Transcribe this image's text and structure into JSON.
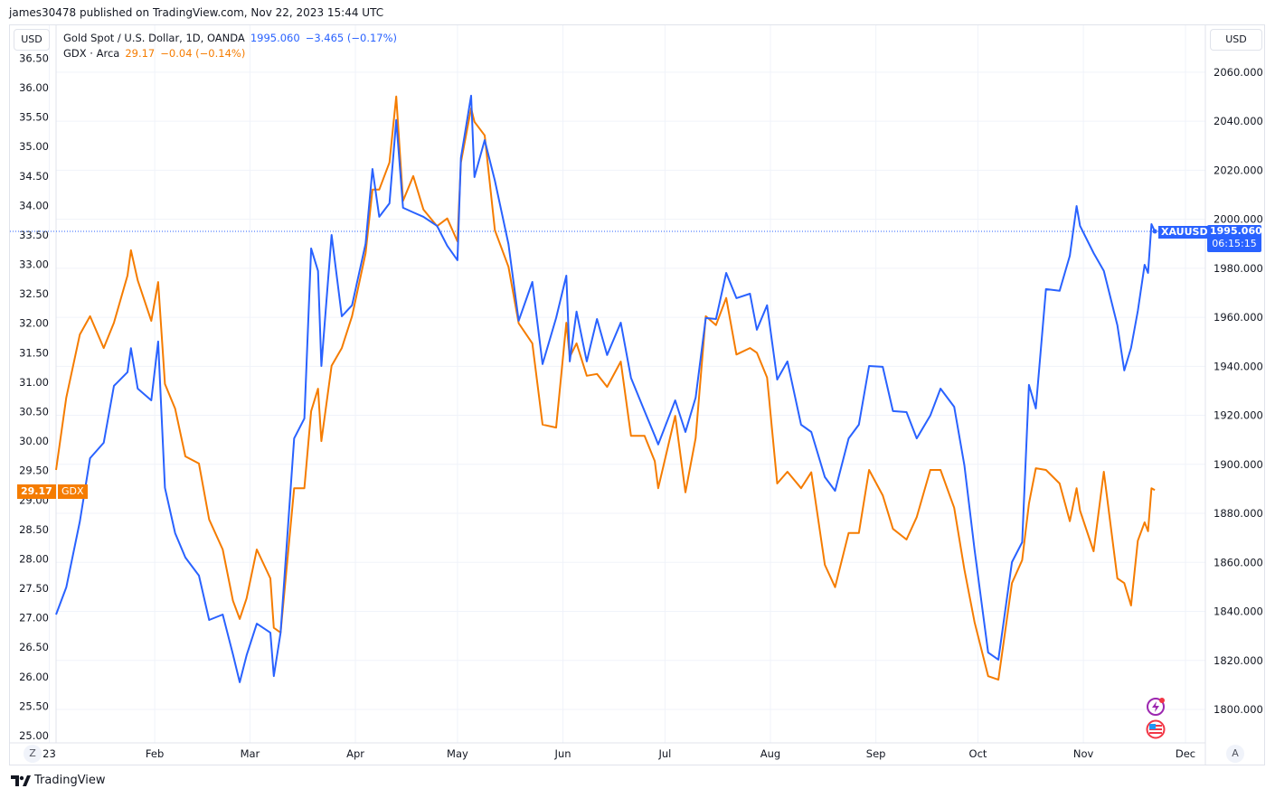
{
  "header": {
    "published": "james30478 published on TradingView.com, Nov 22, 2023 15:44 UTC"
  },
  "currency_left": "USD",
  "currency_right": "USD",
  "legend": [
    {
      "title": "Gold Spot / U.S. Dollar, 1D, OANDA",
      "value": "1995.060",
      "change": "−3.465 (−0.17%)",
      "color": "#2962ff"
    },
    {
      "title": "GDX · Arca",
      "value": "29.17",
      "change": "−0.04 (−0.14%)",
      "color": "#f57c00"
    }
  ],
  "price_labels": {
    "xauusd_symbol": "XAUUSD",
    "xauusd_price": "1995.060",
    "xauusd_countdown": "06:15:15",
    "gdx_price": "29.17",
    "gdx_symbol": "GDX"
  },
  "buttons": {
    "log_scale": "Z",
    "auto_scale": "A"
  },
  "brand": "TradingView",
  "icons": [
    "lightning-event-icon",
    "us-flag-economic-event-icon"
  ],
  "chart_data": {
    "type": "line",
    "x_tick_labels": [
      {
        "date": "2023-01-01",
        "label": "23"
      },
      {
        "date": "2023-02-01",
        "label": "Feb"
      },
      {
        "date": "2023-03-01",
        "label": "Mar"
      },
      {
        "date": "2023-04-01",
        "label": "Apr"
      },
      {
        "date": "2023-05-01",
        "label": "May"
      },
      {
        "date": "2023-06-01",
        "label": "Jun"
      },
      {
        "date": "2023-07-01",
        "label": "Jul"
      },
      {
        "date": "2023-08-01",
        "label": "Aug"
      },
      {
        "date": "2023-09-01",
        "label": "Sep"
      },
      {
        "date": "2023-10-01",
        "label": "Oct"
      },
      {
        "date": "2023-11-01",
        "label": "Nov"
      },
      {
        "date": "2023-12-01",
        "label": "Dec"
      }
    ],
    "left_axis": {
      "ylim": [
        25.0,
        36.5
      ],
      "ticks": [
        "25.00",
        "25.50",
        "26.00",
        "26.50",
        "27.00",
        "27.50",
        "28.00",
        "28.50",
        "29.00",
        "29.50",
        "30.00",
        "30.50",
        "31.00",
        "31.50",
        "32.00",
        "32.50",
        "33.00",
        "33.50",
        "34.00",
        "34.50",
        "35.00",
        "35.50",
        "36.00",
        "36.50"
      ]
    },
    "right_axis": {
      "ylim": [
        1800,
        2060
      ],
      "ticks": [
        "1800.000",
        "1820.000",
        "1840.000",
        "1860.000",
        "1880.000",
        "1900.000",
        "1920.000",
        "1940.000",
        "1960.000",
        "1980.000",
        "2000.000",
        "2020.000",
        "2040.000",
        "2060.000"
      ]
    },
    "grid": true,
    "x": [
      "2023-01-03",
      "2023-01-06",
      "2023-01-10",
      "2023-01-13",
      "2023-01-17",
      "2023-01-20",
      "2023-01-24",
      "2023-01-25",
      "2023-01-27",
      "2023-01-31",
      "2023-02-02",
      "2023-02-04",
      "2023-02-07",
      "2023-02-10",
      "2023-02-14",
      "2023-02-17",
      "2023-02-21",
      "2023-02-24",
      "2023-02-26",
      "2023-02-28",
      "2023-03-03",
      "2023-03-07",
      "2023-03-08",
      "2023-03-10",
      "2023-03-14",
      "2023-03-17",
      "2023-03-19",
      "2023-03-21",
      "2023-03-22",
      "2023-03-25",
      "2023-03-28",
      "2023-03-31",
      "2023-04-04",
      "2023-04-06",
      "2023-04-08",
      "2023-04-11",
      "2023-04-13",
      "2023-04-15",
      "2023-04-18",
      "2023-04-21",
      "2023-04-25",
      "2023-04-28",
      "2023-05-01",
      "2023-05-02",
      "2023-05-05",
      "2023-05-06",
      "2023-05-09",
      "2023-05-12",
      "2023-05-16",
      "2023-05-19",
      "2023-05-23",
      "2023-05-26",
      "2023-05-30",
      "2023-06-02",
      "2023-06-03",
      "2023-06-05",
      "2023-06-08",
      "2023-06-11",
      "2023-06-14",
      "2023-06-18",
      "2023-06-21",
      "2023-06-25",
      "2023-06-28",
      "2023-06-29",
      "2023-07-04",
      "2023-07-07",
      "2023-07-10",
      "2023-07-13",
      "2023-07-16",
      "2023-07-19",
      "2023-07-22",
      "2023-07-26",
      "2023-07-28",
      "2023-07-31",
      "2023-08-03",
      "2023-08-06",
      "2023-08-10",
      "2023-08-13",
      "2023-08-17",
      "2023-08-20",
      "2023-08-24",
      "2023-08-27",
      "2023-08-30",
      "2023-09-03",
      "2023-09-06",
      "2023-09-10",
      "2023-09-13",
      "2023-09-17",
      "2023-09-20",
      "2023-09-24",
      "2023-09-27",
      "2023-09-30",
      "2023-10-04",
      "2023-10-07",
      "2023-10-11",
      "2023-10-14",
      "2023-10-16",
      "2023-10-18",
      "2023-10-21",
      "2023-10-25",
      "2023-10-28",
      "2023-10-30",
      "2023-10-31",
      "2023-11-04",
      "2023-11-07",
      "2023-11-11",
      "2023-11-13",
      "2023-11-15",
      "2023-11-17",
      "2023-11-19",
      "2023-11-20",
      "2023-11-21",
      "2023-11-22"
    ],
    "series": [
      {
        "name": "XAUUSD",
        "axis": "right",
        "color": "#2962ff",
        "values": [
          1838.7,
          1849.8,
          1876.7,
          1902.5,
          1908.8,
          1932.0,
          1937.6,
          1947.4,
          1930.9,
          1926.1,
          1950.1,
          1890.4,
          1871.9,
          1862.0,
          1854.6,
          1836.5,
          1838.7,
          1822.5,
          1811.1,
          1822.1,
          1835.0,
          1831.3,
          1813.6,
          1831.3,
          1910.6,
          1918.7,
          1988.1,
          1978.9,
          1940.1,
          1993.6,
          1960.4,
          1964.9,
          1990.0,
          2020.5,
          2001.0,
          2006.5,
          2040.5,
          2004.7,
          2002.8,
          2001.0,
          1997.3,
          1989.2,
          1983.3,
          2025.0,
          2050.4,
          2017.2,
          2032.3,
          2015.7,
          1989.9,
          1958.6,
          1974.4,
          1940.9,
          1959.7,
          1977.0,
          1942.0,
          1962.3,
          1942.0,
          1959.3,
          1944.6,
          1957.8,
          1935.3,
          1921.7,
          1911.7,
          1908.1,
          1926.1,
          1913.2,
          1927.2,
          1959.7,
          1959.3,
          1978.1,
          1967.8,
          1969.6,
          1954.9,
          1964.9,
          1934.6,
          1942.0,
          1916.2,
          1913.2,
          1894.8,
          1889.2,
          1910.6,
          1916.2,
          1940.1,
          1939.8,
          1921.7,
          1921.3,
          1910.6,
          1919.9,
          1930.9,
          1923.5,
          1899.6,
          1865.3,
          1823.2,
          1820.3,
          1860.1,
          1868.2,
          1932.4,
          1922.8,
          1971.5,
          1970.8,
          1985.1,
          2005.4,
          1997.3,
          1986.2,
          1978.9,
          1956.7,
          1938.3,
          1947.5,
          1962.6,
          1981.4,
          1978.1,
          1998.0,
          1995.06
        ]
      },
      {
        "name": "GDX",
        "axis": "left",
        "color": "#f57c00",
        "values": [
          29.51,
          30.74,
          31.81,
          32.12,
          31.58,
          32.01,
          32.81,
          33.24,
          32.73,
          32.04,
          32.7,
          30.97,
          30.55,
          29.74,
          29.62,
          28.67,
          28.16,
          27.29,
          26.98,
          27.33,
          28.16,
          27.67,
          26.83,
          26.75,
          29.2,
          29.2,
          30.51,
          30.89,
          30.0,
          31.28,
          31.58,
          32.12,
          33.19,
          34.27,
          34.27,
          34.73,
          35.85,
          34.08,
          34.5,
          33.93,
          33.65,
          33.78,
          33.39,
          34.73,
          35.65,
          35.42,
          35.19,
          33.58,
          32.96,
          32.0,
          31.66,
          30.28,
          30.23,
          32.01,
          31.43,
          31.66,
          31.11,
          31.14,
          30.92,
          31.35,
          30.09,
          30.09,
          29.66,
          29.2,
          30.43,
          29.13,
          30.05,
          32.12,
          31.97,
          32.43,
          31.47,
          31.58,
          31.5,
          31.08,
          29.28,
          29.48,
          29.2,
          29.47,
          27.9,
          27.52,
          28.44,
          28.44,
          29.51,
          29.08,
          28.51,
          28.33,
          28.71,
          29.51,
          29.51,
          28.87,
          27.82,
          26.93,
          26.01,
          25.95,
          27.59,
          27.98,
          28.94,
          29.54,
          29.51,
          29.28,
          28.64,
          29.2,
          28.82,
          28.13,
          29.48,
          27.67,
          27.59,
          27.21,
          28.31,
          28.62,
          28.47,
          29.2,
          29.17
        ]
      }
    ],
    "last_price_line": {
      "series": "XAUUSD",
      "value": 1995.06
    }
  }
}
